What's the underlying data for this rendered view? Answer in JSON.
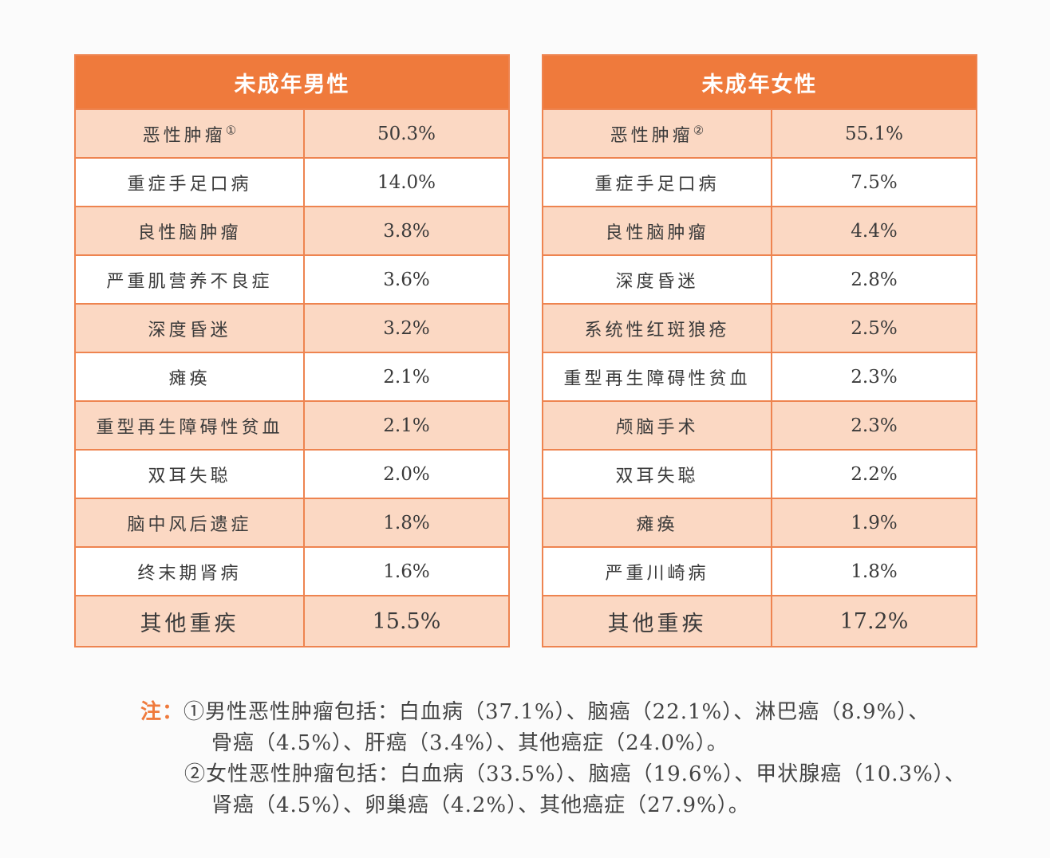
{
  "male": {
    "title": "未成年男性",
    "rows": [
      {
        "name": "恶性肿瘤",
        "mark": "①",
        "value": "50.3%"
      },
      {
        "name": "重症手足口病",
        "value": "14.0%"
      },
      {
        "name": "良性脑肿瘤",
        "value": "3.8%"
      },
      {
        "name": "严重肌营养不良症",
        "value": "3.6%"
      },
      {
        "name": "深度昏迷",
        "value": "3.2%"
      },
      {
        "name": "瘫痪",
        "value": "2.1%"
      },
      {
        "name": "重型再生障碍性贫血",
        "value": "2.1%"
      },
      {
        "name": "双耳失聪",
        "value": "2.0%"
      },
      {
        "name": "脑中风后遗症",
        "value": "1.8%"
      },
      {
        "name": "终末期肾病",
        "value": "1.6%"
      },
      {
        "name": "其他重疾",
        "value": "15.5%"
      }
    ]
  },
  "female": {
    "title": "未成年女性",
    "rows": [
      {
        "name": "恶性肿瘤",
        "mark": "②",
        "value": "55.1%"
      },
      {
        "name": "重症手足口病",
        "value": "7.5%"
      },
      {
        "name": "良性脑肿瘤",
        "value": "4.4%"
      },
      {
        "name": "深度昏迷",
        "value": "2.8%"
      },
      {
        "name": "系统性红斑狼疮",
        "value": "2.5%"
      },
      {
        "name": "重型再生障碍性贫血",
        "value": "2.3%"
      },
      {
        "name": "颅脑手术",
        "value": "2.3%"
      },
      {
        "name": "双耳失聪",
        "value": "2.2%"
      },
      {
        "name": "瘫痪",
        "value": "1.9%"
      },
      {
        "name": "严重川崎病",
        "value": "1.8%"
      },
      {
        "name": "其他重疾",
        "value": "17.2%"
      }
    ]
  },
  "notes": {
    "label": "注：",
    "line1": "①男性恶性肿瘤包括：白血病（37.1%）、脑癌（22.1%）、淋巴癌（8.9%）、",
    "line2": "骨癌（4.5%）、肝癌（3.4%）、其他癌症（24.0%）。",
    "line3": "②女性恶性肿瘤包括：白血病（33.5%）、脑癌（19.6%）、甲状腺癌（10.3%）、",
    "line4": "肾癌（4.5%）、卵巢癌（4.2%）、其他癌症（27.9%）。"
  },
  "colors": {
    "header": "#ef7a3c",
    "row_tint": "#fbd8c3",
    "border": "#ee8450",
    "note_label": "#ef7a3c"
  }
}
